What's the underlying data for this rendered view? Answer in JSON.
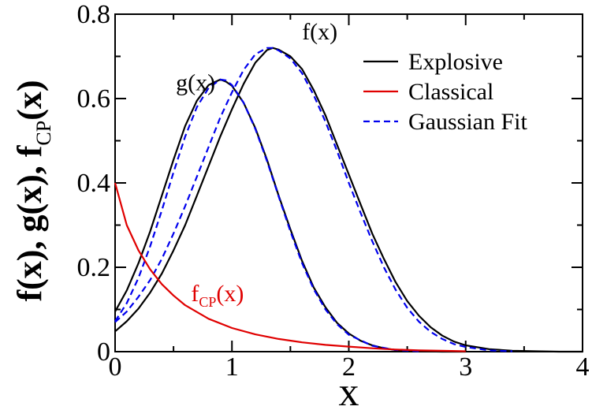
{
  "chart_data": {
    "type": "line",
    "title": "",
    "xlabel": "x",
    "ylabel": "f(x), g(x), f_CP(x)",
    "ylabel_parts": [
      {
        "text": "f(x), g(x), f",
        "sub": false
      },
      {
        "text": "CP",
        "sub": true
      },
      {
        "text": "(x)",
        "sub": false
      }
    ],
    "xlim": [
      0,
      4
    ],
    "ylim": [
      0,
      0.8
    ],
    "xticks": [
      0,
      1,
      2,
      3,
      4
    ],
    "xtick_labels": [
      "0",
      "1",
      "2",
      "3",
      "4"
    ],
    "yticks": [
      0,
      0.2,
      0.4,
      0.6,
      0.8
    ],
    "ytick_labels": [
      "0",
      "0.2",
      "0.4",
      "0.6",
      "0.8"
    ],
    "grid": false,
    "legend_position": "top-right",
    "legend": [
      {
        "label": "Explosive",
        "color": "#000000",
        "dash": "solid"
      },
      {
        "label": "Classical",
        "color": "#e00000",
        "dash": "solid"
      },
      {
        "label": "Gaussian Fit",
        "color": "#0000ee",
        "dash": "dashed"
      }
    ],
    "series": [
      {
        "label": "g(x)",
        "group": "Explosive",
        "color": "#000000",
        "dash": "solid",
        "x": [
          0,
          0.1,
          0.2,
          0.3,
          0.4,
          0.5,
          0.6,
          0.7,
          0.8,
          0.9,
          0.95,
          1.0,
          1.1,
          1.2,
          1.3,
          1.4,
          1.5,
          1.6,
          1.7,
          1.8,
          1.9,
          2.0,
          2.1,
          2.2,
          2.3,
          2.4,
          2.5,
          2.6,
          2.8,
          3.0
        ],
        "y": [
          0.095,
          0.145,
          0.21,
          0.285,
          0.37,
          0.455,
          0.535,
          0.595,
          0.632,
          0.645,
          0.64,
          0.63,
          0.59,
          0.53,
          0.455,
          0.37,
          0.29,
          0.215,
          0.152,
          0.105,
          0.068,
          0.043,
          0.026,
          0.015,
          0.008,
          0.004,
          0.002,
          0.001,
          0.0,
          0.0
        ]
      },
      {
        "label": "f(x)",
        "group": "Explosive",
        "color": "#000000",
        "dash": "solid",
        "x": [
          0,
          0.1,
          0.2,
          0.3,
          0.4,
          0.5,
          0.6,
          0.7,
          0.8,
          0.9,
          1.0,
          1.1,
          1.2,
          1.3,
          1.35,
          1.4,
          1.5,
          1.6,
          1.7,
          1.8,
          1.9,
          2.0,
          2.1,
          2.2,
          2.3,
          2.4,
          2.5,
          2.6,
          2.7,
          2.8,
          2.9,
          3.0,
          3.2,
          3.4,
          3.6,
          3.8,
          4.0
        ],
        "y": [
          0.048,
          0.072,
          0.102,
          0.14,
          0.185,
          0.24,
          0.3,
          0.37,
          0.44,
          0.51,
          0.575,
          0.635,
          0.685,
          0.715,
          0.72,
          0.716,
          0.7,
          0.67,
          0.62,
          0.56,
          0.49,
          0.42,
          0.35,
          0.28,
          0.22,
          0.165,
          0.12,
          0.085,
          0.058,
          0.038,
          0.024,
          0.015,
          0.006,
          0.002,
          0.001,
          0.0,
          0.0
        ]
      },
      {
        "label": "g(x) Gaussian fit",
        "group": "Gaussian Fit",
        "color": "#0000ee",
        "dash": "dashed",
        "x": [
          0,
          0.1,
          0.2,
          0.3,
          0.4,
          0.5,
          0.6,
          0.7,
          0.8,
          0.9,
          0.95,
          1.0,
          1.1,
          1.2,
          1.3,
          1.4,
          1.5,
          1.6,
          1.7,
          1.8,
          1.9,
          2.0,
          2.2,
          2.4,
          2.6
        ],
        "y": [
          0.072,
          0.115,
          0.175,
          0.25,
          0.335,
          0.425,
          0.51,
          0.58,
          0.625,
          0.645,
          0.643,
          0.632,
          0.59,
          0.528,
          0.452,
          0.368,
          0.285,
          0.21,
          0.148,
          0.1,
          0.065,
          0.04,
          0.014,
          0.004,
          0.001
        ]
      },
      {
        "label": "f(x) Gaussian fit",
        "group": "Gaussian Fit",
        "color": "#0000ee",
        "dash": "dashed",
        "x": [
          0,
          0.1,
          0.2,
          0.3,
          0.4,
          0.5,
          0.6,
          0.7,
          0.8,
          0.9,
          1.0,
          1.1,
          1.2,
          1.3,
          1.35,
          1.4,
          1.5,
          1.6,
          1.7,
          1.8,
          1.9,
          2.0,
          2.1,
          2.2,
          2.3,
          2.4,
          2.5,
          2.6,
          2.7,
          2.8,
          2.9,
          3.0,
          3.2,
          3.4
        ],
        "y": [
          0.07,
          0.095,
          0.13,
          0.17,
          0.22,
          0.28,
          0.345,
          0.415,
          0.485,
          0.555,
          0.615,
          0.668,
          0.705,
          0.72,
          0.72,
          0.714,
          0.695,
          0.66,
          0.608,
          0.545,
          0.475,
          0.4,
          0.33,
          0.262,
          0.2,
          0.147,
          0.104,
          0.071,
          0.047,
          0.03,
          0.018,
          0.011,
          0.003,
          0.001
        ]
      },
      {
        "label": "f_CP(x)",
        "group": "Classical",
        "color": "#e00000",
        "dash": "solid",
        "x": [
          0,
          0.1,
          0.2,
          0.3,
          0.4,
          0.5,
          0.6,
          0.8,
          1.0,
          1.2,
          1.4,
          1.6,
          1.8,
          2.0,
          2.2,
          2.4,
          2.6,
          2.8,
          3.0
        ],
        "y": [
          0.4,
          0.3,
          0.24,
          0.195,
          0.16,
          0.133,
          0.11,
          0.078,
          0.056,
          0.041,
          0.03,
          0.022,
          0.016,
          0.012,
          0.008,
          0.005,
          0.003,
          0.002,
          0.001
        ]
      }
    ],
    "annotations": [
      {
        "text": "g(x)",
        "x": 0.52,
        "y": 0.62,
        "color": "#000000",
        "sub": ""
      },
      {
        "text": "f(x)",
        "x": 1.6,
        "y": 0.74,
        "color": "#000000",
        "sub": ""
      },
      {
        "text": "f",
        "sub": "CP",
        "suffix": "(x)",
        "x": 0.65,
        "y": 0.12,
        "color": "#e00000"
      }
    ]
  }
}
